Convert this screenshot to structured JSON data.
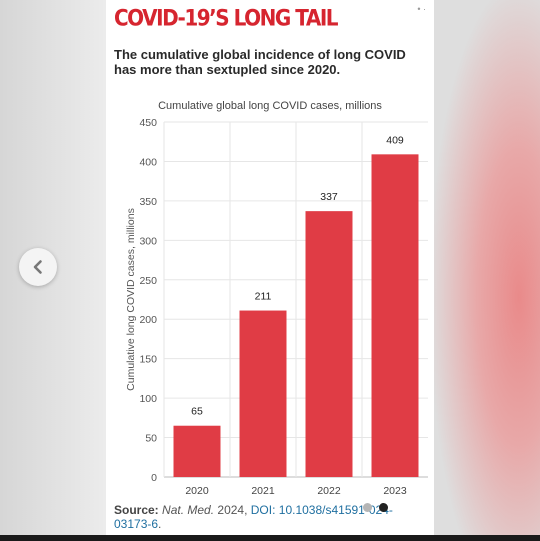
{
  "headline": "COVID-19’S LONG TAIL",
  "subhead": "The cumulative global incidence of long COVID has more than sextupled since 2020.",
  "source": {
    "label": "Source:",
    "journal": "Nat. Med.",
    "year_text": " 2024, ",
    "doi_label": "DOI:",
    "doi_value": " 10.1038/s41591-024-03173-6",
    "end": "."
  },
  "carousel": {
    "prev_icon": "chevron-left-icon",
    "page_count": 2,
    "active_page": 2
  },
  "colors": {
    "accent": "#e03c45",
    "headline": "#d6252f",
    "grid": "#e6e6e6"
  },
  "chart_data": {
    "type": "bar",
    "title": "Cumulative global long COVID cases, millions",
    "xlabel": "",
    "ylabel": "Cumulative long COVID cases, millions",
    "categories": [
      "2020",
      "2021",
      "2022",
      "2023"
    ],
    "values": [
      65,
      211,
      337,
      409
    ],
    "data_labels": [
      "65",
      "211",
      "337",
      "409"
    ],
    "ylim": [
      0,
      450
    ],
    "yticks": [
      0,
      50,
      100,
      150,
      200,
      250,
      300,
      350,
      400,
      450
    ],
    "grid": true,
    "bar_color": "#e03c45"
  }
}
